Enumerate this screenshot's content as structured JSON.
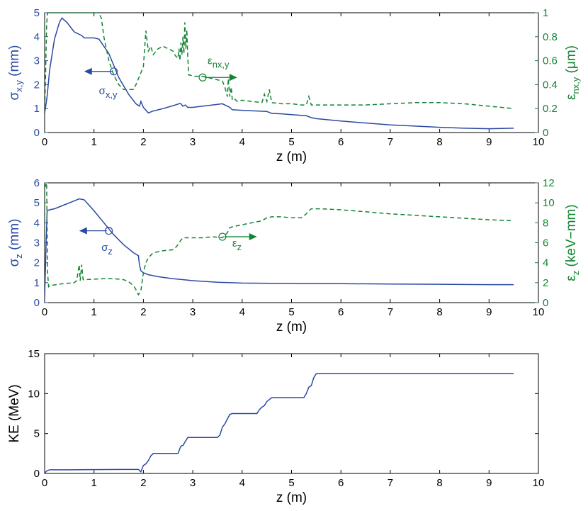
{
  "colors": {
    "blue": "#2b4aa2",
    "green": "#138434",
    "axis": "#000000"
  },
  "chart_data": [
    {
      "type": "line",
      "xlabel": "z (m)",
      "xlim": [
        0,
        10
      ],
      "xticks": [
        "0",
        "1",
        "2",
        "3",
        "4",
        "5",
        "6",
        "7",
        "8",
        "9",
        "10"
      ],
      "ylabel_left": {
        "main": "σ",
        "sub": "x,y",
        "unit": " (mm)"
      },
      "ylim_left": [
        0,
        5
      ],
      "yticks_left": [
        "0",
        "1",
        "2",
        "3",
        "4",
        "5"
      ],
      "ylabel_right": {
        "main": "ε",
        "sub": "nx,y",
        "unit": " (μm)"
      },
      "ylim_right": [
        0,
        1
      ],
      "yticks_right": [
        "0",
        "0.2",
        "0.4",
        "0.6",
        "0.8",
        "1"
      ],
      "annotation_left": {
        "main": "σ",
        "sub": "x,y"
      },
      "annotation_right": {
        "main": "ε",
        "sub": "nx,y"
      },
      "series": [
        {
          "axis": "left",
          "style": "solid",
          "x": [
            0,
            0.05,
            0.1,
            0.2,
            0.3,
            0.35,
            0.45,
            0.6,
            0.75,
            0.8,
            1.0,
            1.1,
            1.3,
            1.5,
            1.7,
            1.85,
            1.92,
            1.95,
            2.0,
            2.1,
            2.2,
            2.4,
            2.6,
            2.75,
            2.8,
            2.85,
            2.9,
            3.0,
            3.2,
            3.4,
            3.6,
            3.7,
            3.75,
            3.8,
            4.0,
            4.3,
            4.5,
            4.6,
            4.8,
            5.0,
            5.3,
            5.4,
            5.5,
            6.0,
            6.5,
            7.0,
            7.5,
            8.0,
            8.5,
            9.0,
            9.5
          ],
          "y": [
            0.8,
            1.5,
            2.6,
            3.9,
            4.6,
            4.78,
            4.6,
            4.2,
            4.05,
            3.95,
            3.95,
            3.9,
            3.3,
            2.3,
            1.6,
            1.2,
            1.1,
            1.3,
            1.05,
            0.82,
            0.9,
            1.0,
            1.12,
            1.22,
            1.1,
            1.15,
            1.05,
            1.05,
            1.1,
            1.15,
            1.2,
            1.1,
            1.05,
            0.95,
            0.93,
            0.9,
            0.88,
            0.8,
            0.78,
            0.75,
            0.7,
            0.62,
            0.58,
            0.48,
            0.4,
            0.32,
            0.27,
            0.22,
            0.18,
            0.16,
            0.18
          ]
        },
        {
          "axis": "right",
          "style": "dashed",
          "x": [
            0,
            0.02,
            0.04,
            0.06,
            0.08,
            0.1,
            0.2,
            0.4,
            0.6,
            0.8,
            1.0,
            1.05,
            1.1,
            1.15,
            1.2,
            1.3,
            1.4,
            1.5,
            1.6,
            1.7,
            1.8,
            1.85,
            1.9,
            1.95,
            2.0,
            2.05,
            2.1,
            2.15,
            2.2,
            2.3,
            2.4,
            2.5,
            2.6,
            2.65,
            2.7,
            2.72,
            2.74,
            2.76,
            2.78,
            2.8,
            2.82,
            2.84,
            2.86,
            2.88,
            2.9,
            2.92,
            2.95,
            3.0,
            3.1,
            3.2,
            3.3,
            3.4,
            3.5,
            3.6,
            3.65,
            3.7,
            3.72,
            3.75,
            3.78,
            3.8,
            3.85,
            3.9,
            4.0,
            4.2,
            4.4,
            4.45,
            4.5,
            4.55,
            4.6,
            4.8,
            5.0,
            5.2,
            5.3,
            5.35,
            5.4,
            5.6,
            6.0,
            6.5,
            7.0,
            7.5,
            8.0,
            8.5,
            9.0,
            9.5
          ],
          "y": [
            0.15,
            0.5,
            0.9,
            1.0,
            1.0,
            1.0,
            1.0,
            1.0,
            1.0,
            1.0,
            1.0,
            1.0,
            1.0,
            0.95,
            0.8,
            0.6,
            0.48,
            0.4,
            0.36,
            0.36,
            0.36,
            0.4,
            0.45,
            0.5,
            0.55,
            0.85,
            0.68,
            0.72,
            0.65,
            0.7,
            0.72,
            0.7,
            0.68,
            0.64,
            0.62,
            0.7,
            0.6,
            0.75,
            0.65,
            0.8,
            0.66,
            0.92,
            0.7,
            0.86,
            0.62,
            0.48,
            0.48,
            0.47,
            0.47,
            0.47,
            0.46,
            0.45,
            0.44,
            0.43,
            0.38,
            0.3,
            0.45,
            0.3,
            0.38,
            0.27,
            0.28,
            0.26,
            0.27,
            0.26,
            0.25,
            0.32,
            0.26,
            0.36,
            0.25,
            0.24,
            0.24,
            0.23,
            0.23,
            0.3,
            0.23,
            0.23,
            0.23,
            0.23,
            0.24,
            0.25,
            0.25,
            0.24,
            0.22,
            0.2
          ]
        }
      ]
    },
    {
      "type": "line",
      "xlabel": "z (m)",
      "xlim": [
        0,
        10
      ],
      "xticks": [
        "0",
        "1",
        "2",
        "3",
        "4",
        "5",
        "6",
        "7",
        "8",
        "9",
        "10"
      ],
      "ylabel_left": {
        "main": "σ",
        "sub": "z",
        "unit": " (mm)"
      },
      "ylim_left": [
        0,
        6
      ],
      "yticks_left": [
        "0",
        "1",
        "2",
        "3",
        "4",
        "5",
        "6"
      ],
      "ylabel_right": {
        "main": "ε",
        "sub": "z",
        "unit": " (keV−mm)"
      },
      "ylim_right": [
        0,
        12
      ],
      "yticks_right": [
        "0",
        "2",
        "4",
        "6",
        "8",
        "10",
        "12"
      ],
      "annotation_left": {
        "main": "σ",
        "sub": "z"
      },
      "annotation_right": {
        "main": "ε",
        "sub": "z"
      },
      "series": [
        {
          "axis": "left",
          "style": "solid",
          "x": [
            0,
            0.03,
            0.05,
            0.1,
            0.2,
            0.4,
            0.6,
            0.7,
            0.8,
            1.0,
            1.2,
            1.4,
            1.6,
            1.8,
            1.9,
            1.92,
            1.95,
            2.0,
            2.1,
            2.3,
            2.6,
            3.0,
            3.5,
            4.0,
            5.0,
            6.0,
            7.0,
            8.0,
            9.0,
            9.5
          ],
          "y": [
            0.2,
            3.0,
            4.6,
            4.65,
            4.7,
            4.9,
            5.1,
            5.2,
            5.15,
            4.6,
            4.0,
            3.4,
            2.9,
            2.5,
            2.35,
            1.9,
            1.6,
            1.5,
            1.4,
            1.3,
            1.2,
            1.1,
            1.02,
            0.98,
            0.96,
            0.95,
            0.93,
            0.92,
            0.9,
            0.9
          ]
        },
        {
          "axis": "right",
          "style": "dashed",
          "x": [
            0,
            0.04,
            0.06,
            0.08,
            0.1,
            0.3,
            0.6,
            0.65,
            0.7,
            0.72,
            0.75,
            0.78,
            0.8,
            1.0,
            1.2,
            1.4,
            1.6,
            1.7,
            1.8,
            1.85,
            1.9,
            1.95,
            2.0,
            2.05,
            2.1,
            2.2,
            2.4,
            2.6,
            2.65,
            2.7,
            2.75,
            2.8,
            2.9,
            3.0,
            3.2,
            3.4,
            3.6,
            3.7,
            3.75,
            3.8,
            4.0,
            4.2,
            4.4,
            4.5,
            4.6,
            4.8,
            5.0,
            5.2,
            5.3,
            5.35,
            5.4,
            5.6,
            6.0,
            6.5,
            7.0,
            7.5,
            8.0,
            8.5,
            9.0,
            9.5
          ],
          "y": [
            11.5,
            12.0,
            3.0,
            1.6,
            1.7,
            1.85,
            2.0,
            2.2,
            3.8,
            2.2,
            3.8,
            2.3,
            2.3,
            2.35,
            2.4,
            2.4,
            2.3,
            2.1,
            1.7,
            1.3,
            0.8,
            1.2,
            3.0,
            4.0,
            4.5,
            5.0,
            5.2,
            5.3,
            5.5,
            5.8,
            6.2,
            6.5,
            6.5,
            6.5,
            6.5,
            6.6,
            6.5,
            7.0,
            7.5,
            7.6,
            7.8,
            8.0,
            8.2,
            8.5,
            8.6,
            8.6,
            8.5,
            8.5,
            8.9,
            9.2,
            9.4,
            9.4,
            9.3,
            9.1,
            8.9,
            8.75,
            8.6,
            8.45,
            8.3,
            8.2
          ]
        }
      ]
    },
    {
      "type": "line",
      "xlabel": "z (m)",
      "xlim": [
        0,
        10
      ],
      "xticks": [
        "0",
        "1",
        "2",
        "3",
        "4",
        "5",
        "6",
        "7",
        "8",
        "9",
        "10"
      ],
      "ylabel_left": {
        "main": "KE (MeV)",
        "sub": "",
        "unit": ""
      },
      "ylim_left": [
        0,
        15
      ],
      "yticks_left": [
        "0",
        "5",
        "10",
        "15"
      ],
      "series": [
        {
          "axis": "left",
          "style": "solid",
          "x": [
            0,
            0.05,
            0.1,
            0.5,
            1.0,
            1.5,
            1.9,
            1.95,
            2.0,
            2.05,
            2.1,
            2.15,
            2.2,
            2.3,
            2.5,
            2.7,
            2.72,
            2.75,
            2.78,
            2.8,
            2.85,
            2.9,
            3.0,
            3.2,
            3.5,
            3.55,
            3.6,
            3.65,
            3.7,
            3.75,
            3.8,
            3.9,
            4.0,
            4.2,
            4.3,
            4.35,
            4.4,
            4.45,
            4.5,
            4.6,
            5.0,
            5.2,
            5.25,
            5.3,
            5.35,
            5.4,
            5.45,
            5.5,
            6.0,
            7.0,
            8.0,
            9.0,
            9.5
          ],
          "y": [
            0.05,
            0.35,
            0.45,
            0.45,
            0.48,
            0.5,
            0.5,
            0.2,
            1.0,
            1.2,
            1.6,
            2.2,
            2.5,
            2.5,
            2.5,
            2.5,
            2.8,
            3.3,
            3.5,
            3.5,
            4.0,
            4.5,
            4.5,
            4.5,
            4.5,
            4.8,
            5.8,
            6.2,
            6.8,
            7.4,
            7.5,
            7.5,
            7.5,
            7.5,
            7.5,
            8.0,
            8.3,
            8.5,
            9.0,
            9.5,
            9.5,
            9.5,
            9.5,
            10.0,
            10.8,
            11.0,
            12.0,
            12.5,
            12.5,
            12.5,
            12.5,
            12.5,
            12.5
          ]
        }
      ]
    }
  ]
}
